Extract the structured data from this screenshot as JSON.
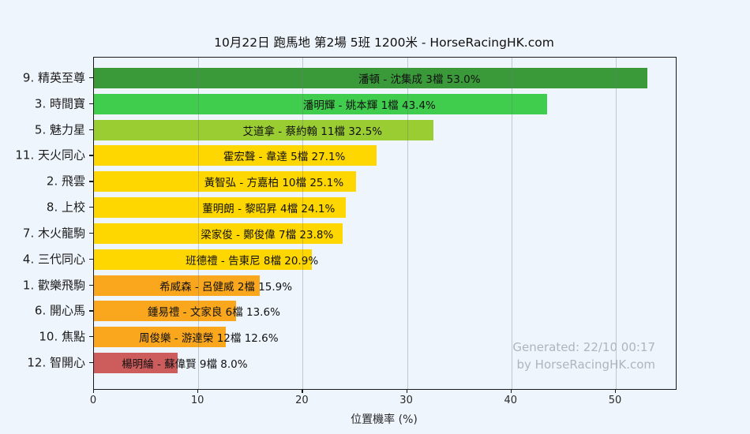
{
  "title": "10月22日 跑馬地 第2場 5班 1200米 - HorseRacingHK.com",
  "chart_data": {
    "type": "bar",
    "orientation": "horizontal",
    "title": "10月22日 跑馬地 第2場 5班 1200米 - HorseRacingHK.com",
    "xlabel": "位置機率 (%)",
    "ylabel": "",
    "xlim": [
      0,
      55.75
    ],
    "xticks": [
      0,
      10,
      20,
      30,
      40,
      50
    ],
    "grid": true,
    "grid_axis": "x",
    "legend": "none",
    "categories": [
      "9. 精英至尊",
      "3. 時間寶",
      "5. 魅力星",
      "11. 天火同心",
      "2. 飛雲",
      "8. 上校",
      "7. 木火龍駒",
      "4. 三代同心",
      "1. 歡樂飛駒",
      "6. 開心馬",
      "10. 焦點",
      "12. 智開心"
    ],
    "values": [
      53.0,
      43.4,
      32.5,
      27.1,
      25.1,
      24.1,
      23.8,
      20.9,
      15.9,
      13.6,
      12.6,
      8.0
    ],
    "bar_labels": [
      "潘頓 - 沈集成 3檔  53.0%",
      "潘明輝 - 姚本輝 1檔  43.4%",
      "艾道拿 - 蔡約翰 11檔  32.5%",
      "霍宏聲 - 韋達 5檔  27.1%",
      "黃智弘 - 方嘉柏 10檔  25.1%",
      "董明朗 - 黎昭昇 4檔  24.1%",
      "梁家俊 - 鄭俊偉 7檔  23.8%",
      "班德禮 - 告東尼 8檔  20.9%",
      "希威森 - 呂健威 2檔  15.9%",
      "鍾易禮 - 文家良 6檔  13.6%",
      "周俊樂 - 游達榮 12檔  12.6%",
      "楊明綸 - 蘇偉賢 9檔  8.0%"
    ],
    "runners": [
      {
        "number": 9,
        "horse": "精英至尊",
        "jockey": "潘頓",
        "trainer": "沈集成",
        "draw": "3檔",
        "probability_pct": 53.0
      },
      {
        "number": 3,
        "horse": "時間寶",
        "jockey": "潘明輝",
        "trainer": "姚本輝",
        "draw": "1檔",
        "probability_pct": 43.4
      },
      {
        "number": 5,
        "horse": "魅力星",
        "jockey": "艾道拿",
        "trainer": "蔡約翰",
        "draw": "11檔",
        "probability_pct": 32.5
      },
      {
        "number": 11,
        "horse": "天火同心",
        "jockey": "霍宏聲",
        "trainer": "韋達",
        "draw": "5檔",
        "probability_pct": 27.1
      },
      {
        "number": 2,
        "horse": "飛雲",
        "jockey": "黃智弘",
        "trainer": "方嘉柏",
        "draw": "10檔",
        "probability_pct": 25.1
      },
      {
        "number": 8,
        "horse": "上校",
        "jockey": "董明朗",
        "trainer": "黎昭昇",
        "draw": "4檔",
        "probability_pct": 24.1
      },
      {
        "number": 7,
        "horse": "木火龍駒",
        "jockey": "梁家俊",
        "trainer": "鄭俊偉",
        "draw": "7檔",
        "probability_pct": 23.8
      },
      {
        "number": 4,
        "horse": "三代同心",
        "jockey": "班德禮",
        "trainer": "告東尼",
        "draw": "8檔",
        "probability_pct": 20.9
      },
      {
        "number": 1,
        "horse": "歡樂飛駒",
        "jockey": "希威森",
        "trainer": "呂健威",
        "draw": "2檔",
        "probability_pct": 15.9
      },
      {
        "number": 6,
        "horse": "開心馬",
        "jockey": "鍾易禮",
        "trainer": "文家良",
        "draw": "6檔",
        "probability_pct": 13.6
      },
      {
        "number": 10,
        "horse": "焦點",
        "jockey": "周俊樂",
        "trainer": "游達榮",
        "draw": "12檔",
        "probability_pct": 12.6
      },
      {
        "number": 12,
        "horse": "智開心",
        "jockey": "楊明綸",
        "trainer": "蘇偉賢",
        "draw": "9檔",
        "probability_pct": 8.0
      }
    ],
    "bar_colors": [
      "#3A9A3A",
      "#40CC4C",
      "#9ACD32",
      "#FFD700",
      "#FFD700",
      "#FFD700",
      "#FFD700",
      "#FFD700",
      "#FAA71E",
      "#FAA71E",
      "#FAA71E",
      "#CD5C5C"
    ]
  },
  "watermark": {
    "line1": "Generated: 22/10 00:17",
    "line2": "by HorseRacingHK.com"
  },
  "colors": {
    "background": "#EFF5FC",
    "spine": "#1a1a1a",
    "gridline": "rgba(110,122,135,0.38)",
    "watermark_text": "#ADB5BF"
  }
}
